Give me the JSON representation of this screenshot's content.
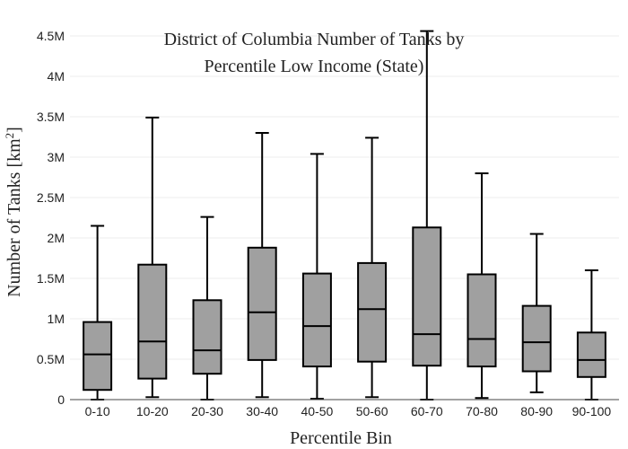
{
  "chart_data": {
    "type": "box",
    "title_lines": [
      "District of Columbia Number of Tanks by",
      "Percentile Low Income (State)"
    ],
    "xlabel": "Percentile Bin",
    "ylabel": "Number of Tanks  [km",
    "ylabel_sup": "2",
    "ylabel_close": "]",
    "ylim": [
      0,
      4500000
    ],
    "yticks": [
      {
        "value": 0,
        "label": "0"
      },
      {
        "value": 500000,
        "label": "0.5M"
      },
      {
        "value": 1000000,
        "label": "1M"
      },
      {
        "value": 1500000,
        "label": "1.5M"
      },
      {
        "value": 2000000,
        "label": "2M"
      },
      {
        "value": 2500000,
        "label": "2.5M"
      },
      {
        "value": 3000000,
        "label": "3M"
      },
      {
        "value": 3500000,
        "label": "3.5M"
      },
      {
        "value": 4000000,
        "label": "4M"
      },
      {
        "value": 4500000,
        "label": "4.5M"
      }
    ],
    "grid": true,
    "box_color": "#a0a0a0",
    "line_color": "#000000",
    "boxes": [
      {
        "label": "0-10",
        "min": 0,
        "q1": 120000,
        "median": 560000,
        "q3": 960000,
        "max": 2150000
      },
      {
        "label": "10-20",
        "min": 30000,
        "q1": 260000,
        "median": 720000,
        "q3": 1670000,
        "max": 3490000
      },
      {
        "label": "20-30",
        "min": 0,
        "q1": 320000,
        "median": 610000,
        "q3": 1230000,
        "max": 2260000
      },
      {
        "label": "30-40",
        "min": 30000,
        "q1": 490000,
        "median": 1080000,
        "q3": 1880000,
        "max": 3300000
      },
      {
        "label": "40-50",
        "min": 10000,
        "q1": 410000,
        "median": 910000,
        "q3": 1560000,
        "max": 3040000
      },
      {
        "label": "50-60",
        "min": 30000,
        "q1": 470000,
        "median": 1120000,
        "q3": 1690000,
        "max": 3240000
      },
      {
        "label": "60-70",
        "min": 0,
        "q1": 420000,
        "median": 810000,
        "q3": 2130000,
        "max": 4560000
      },
      {
        "label": "70-80",
        "min": 20000,
        "q1": 410000,
        "median": 750000,
        "q3": 1550000,
        "max": 2800000
      },
      {
        "label": "80-90",
        "min": 90000,
        "q1": 350000,
        "median": 710000,
        "q3": 1160000,
        "max": 2050000
      },
      {
        "label": "90-100",
        "min": 0,
        "q1": 280000,
        "median": 490000,
        "q3": 830000,
        "max": 1600000
      }
    ]
  }
}
